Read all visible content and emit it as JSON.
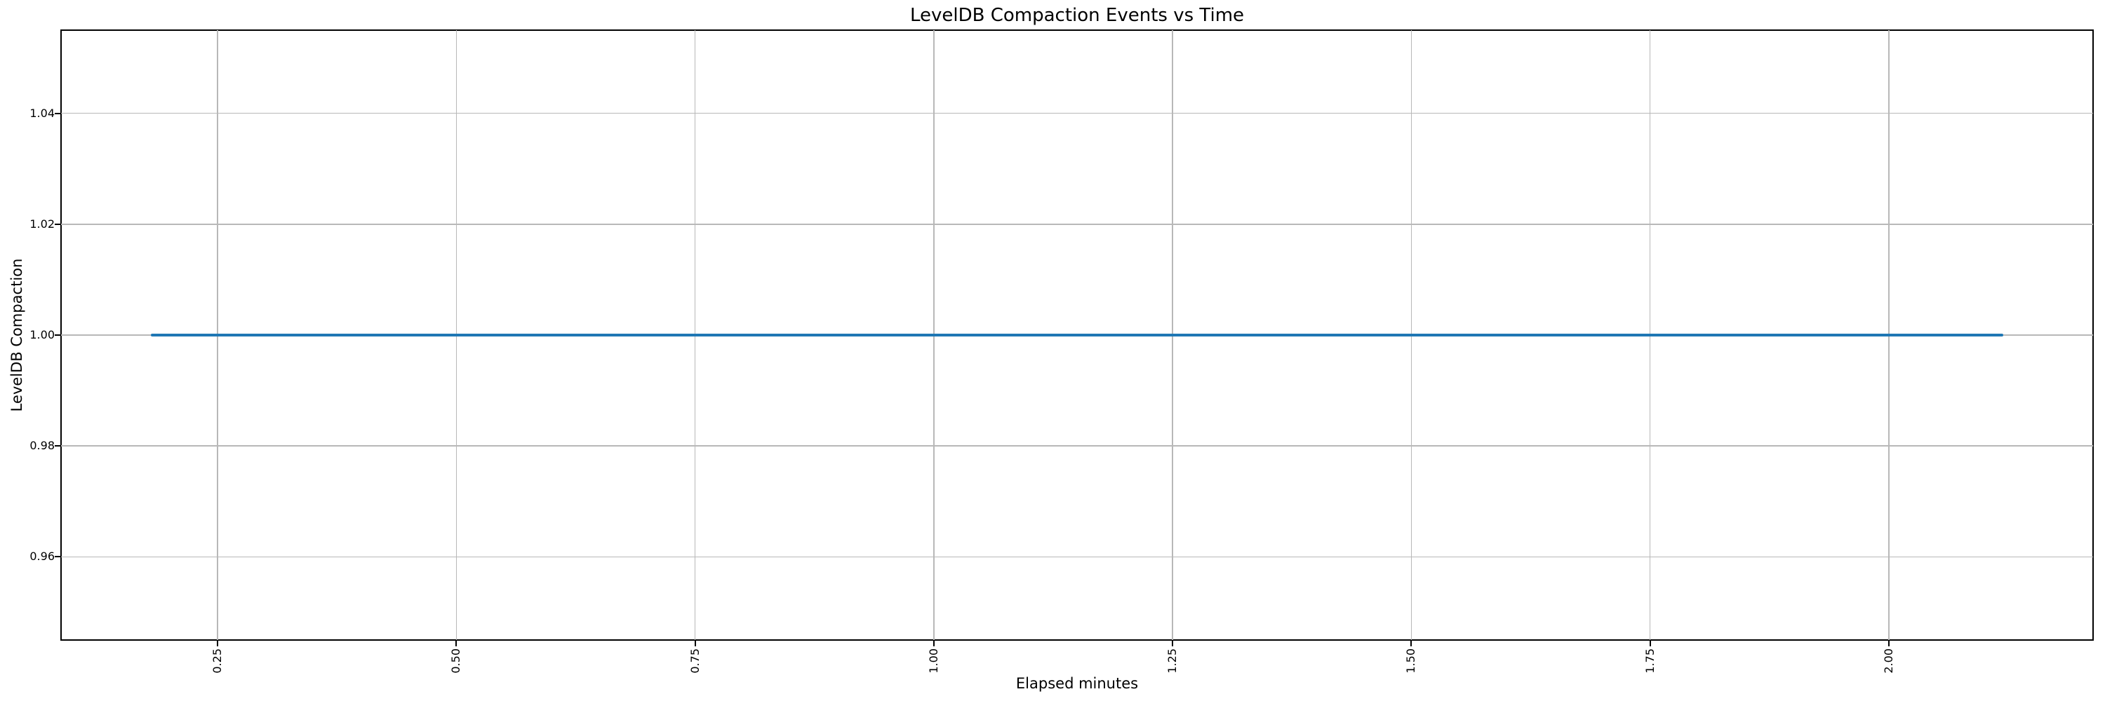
{
  "chart_data": {
    "type": "line",
    "title": "LevelDB Compaction Events vs Time",
    "xlabel": "Elapsed minutes",
    "ylabel": "LevelDB Compaction",
    "series": [
      {
        "name": "LevelDB Compaction",
        "color": "#1f77b4",
        "x": [
          0.18,
          2.12
        ],
        "y": [
          1.0,
          1.0
        ]
      }
    ],
    "xlim": [
      0.086,
      2.214
    ],
    "ylim": [
      0.945,
      1.055
    ],
    "xticks": [
      0.25,
      0.5,
      0.75,
      1.0,
      1.25,
      1.5,
      1.75,
      2.0
    ],
    "yticks": [
      0.96,
      0.98,
      1.0,
      1.02,
      1.04
    ],
    "xtick_labels": [
      "0.25",
      "0.50",
      "0.75",
      "1.00",
      "1.25",
      "1.50",
      "1.75",
      "2.00"
    ],
    "ytick_labels": [
      "0.96",
      "0.98",
      "1.00",
      "1.02",
      "1.04"
    ],
    "xtick_rotation": 90,
    "grid": true,
    "grid_color": "#b8b8b8",
    "background_color": "#ffffff",
    "spine_color": "#000000",
    "legend": false
  }
}
